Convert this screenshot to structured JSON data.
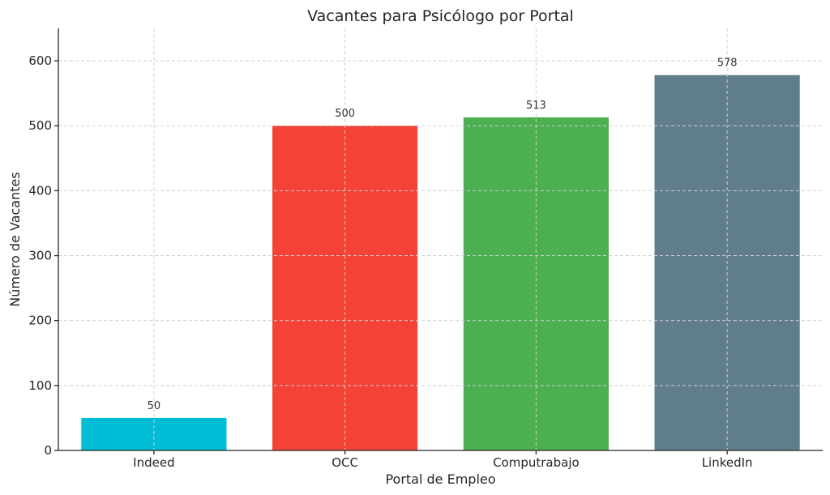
{
  "chart_data": {
    "type": "bar",
    "title": "Vacantes para Psicólogo por Portal",
    "xlabel": "Portal de Empleo",
    "ylabel": "Número de Vacantes",
    "categories": [
      "Indeed",
      "OCC",
      "Computrabajo",
      "LinkedIn"
    ],
    "values": [
      50,
      500,
      513,
      578
    ],
    "colors": [
      "#00BCD4",
      "#F44336",
      "#4CAF50",
      "#607D8B"
    ],
    "ylim": [
      0,
      650
    ],
    "yticks": [
      0,
      100,
      200,
      300,
      400,
      500,
      600
    ],
    "grid": true,
    "data_labels": true
  }
}
